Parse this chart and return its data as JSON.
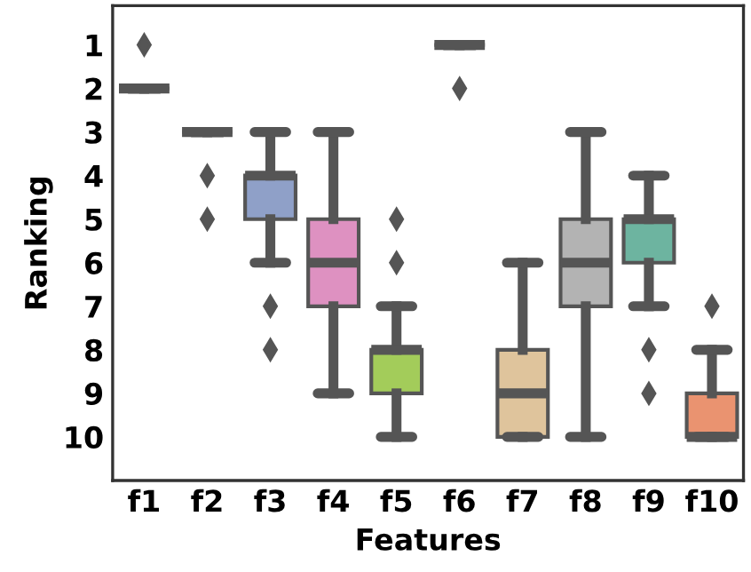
{
  "chart_data": {
    "type": "box",
    "xlabel": "Features",
    "ylabel": "Ranking",
    "categories": [
      "f1",
      "f2",
      "f3",
      "f4",
      "f5",
      "f6",
      "f7",
      "f8",
      "f9",
      "f10"
    ],
    "colors": [
      null,
      null,
      "#8fa0c8",
      "#de91c1",
      "#a3cc5a",
      null,
      "#dfc49c",
      "#b3b3b3",
      "#6db4a0",
      "#ea9370"
    ],
    "boxes": [
      {
        "low": 2,
        "q1": 2,
        "median": 2,
        "q3": 2,
        "high": 2,
        "outliers": [
          1
        ]
      },
      {
        "low": 3,
        "q1": 3,
        "median": 3,
        "q3": 3,
        "high": 3,
        "outliers": [
          4,
          5
        ]
      },
      {
        "low": 3,
        "q1": 4,
        "median": 4,
        "q3": 5,
        "high": 6,
        "outliers": [
          7,
          8
        ]
      },
      {
        "low": 3,
        "q1": 5,
        "median": 6,
        "q3": 7,
        "high": 9
      },
      {
        "low": 7,
        "q1": 8,
        "median": 8,
        "q3": 9,
        "high": 10,
        "outliers": [
          5,
          6
        ]
      },
      {
        "low": 1,
        "q1": 1,
        "median": 1,
        "q3": 1,
        "high": 1,
        "outliers": [
          2
        ]
      },
      {
        "low": 6,
        "q1": 8,
        "median": 9,
        "q3": 10,
        "high": 10
      },
      {
        "low": 3,
        "q1": 5,
        "median": 6,
        "q3": 7,
        "high": 10
      },
      {
        "low": 4,
        "q1": 5,
        "median": 5,
        "q3": 6,
        "high": 7,
        "outliers": [
          8,
          9
        ]
      },
      {
        "low": 8,
        "q1": 9,
        "median": 10,
        "q3": 10,
        "high": 10,
        "outliers": [
          7
        ]
      }
    ],
    "ylim": [
      11,
      0.1
    ],
    "yticks": [
      1,
      2,
      3,
      4,
      5,
      6,
      7,
      8,
      9,
      10
    ],
    "grid": false,
    "marker": "diamond"
  }
}
